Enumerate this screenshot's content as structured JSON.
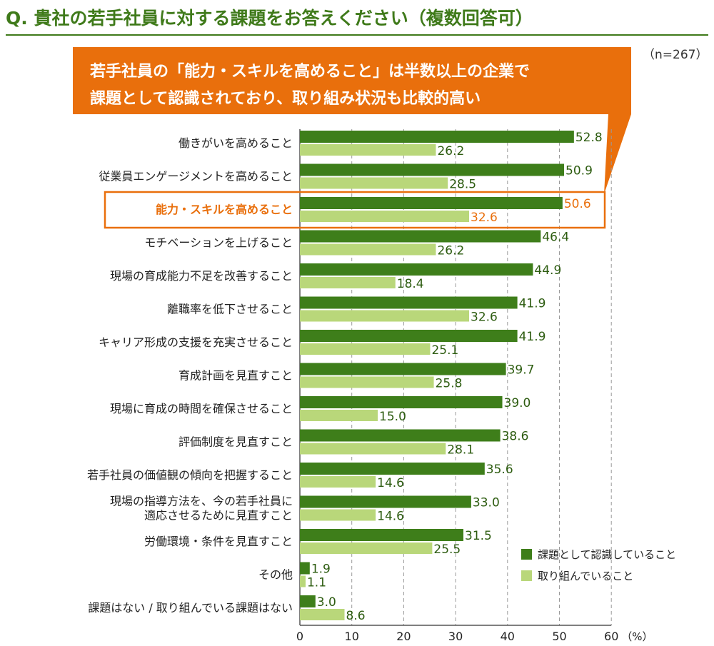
{
  "title": "Q. 貴社の若手社員に対する課題をお答えください（複数回答可）",
  "n_label": "（n=267）",
  "callout": {
    "line1": "若手社員の「能力・スキルを高めること」は半数以上の企業で",
    "line2": "課題として認識されており、取り組み状況も比較的高い"
  },
  "colors": {
    "dark": "#3e7e1a",
    "light": "#b9d77a",
    "accent": "#e96f0c",
    "title": "#3f7a1a"
  },
  "chart_data": {
    "type": "bar",
    "orientation": "horizontal",
    "categories": [
      [
        "働きがいを高めること"
      ],
      [
        "従業員エンゲージメントを高めること"
      ],
      [
        "能力・スキルを高めること"
      ],
      [
        "モチベーションを上げること"
      ],
      [
        "現場の育成能力不足を改善すること"
      ],
      [
        "離職率を低下させること"
      ],
      [
        "キャリア形成の支援を充実させること"
      ],
      [
        "育成計画を見直すこと"
      ],
      [
        "現場に育成の時間を確保させること"
      ],
      [
        "評価制度を見直すこと"
      ],
      [
        "若手社員の価値観の傾向を把握すること"
      ],
      [
        "現場の指導方法を、今の若手社員に",
        "適応させるために見直すこと"
      ],
      [
        "労働環境・条件を見直すこと"
      ],
      [
        "その他"
      ],
      [
        "課題はない / 取り組んでいる課題はない"
      ]
    ],
    "highlight_index": 2,
    "series": [
      {
        "name": "課題として認識していること",
        "color": "#3e7e1a",
        "values": [
          52.8,
          50.9,
          50.6,
          46.4,
          44.9,
          41.9,
          41.9,
          39.7,
          39.0,
          38.6,
          35.6,
          33.0,
          31.5,
          1.9,
          3.0
        ]
      },
      {
        "name": "取り組んでいること",
        "color": "#b9d77a",
        "values": [
          26.2,
          28.5,
          32.6,
          26.2,
          18.4,
          32.6,
          25.1,
          25.8,
          15.0,
          28.1,
          14.6,
          14.6,
          25.5,
          1.1,
          8.6
        ]
      }
    ],
    "xlim": [
      0,
      60
    ],
    "xticks": [
      0,
      10,
      20,
      30,
      40,
      50,
      60
    ],
    "xunit": "（%）",
    "grid": true,
    "legend_position": "bottom-right"
  }
}
